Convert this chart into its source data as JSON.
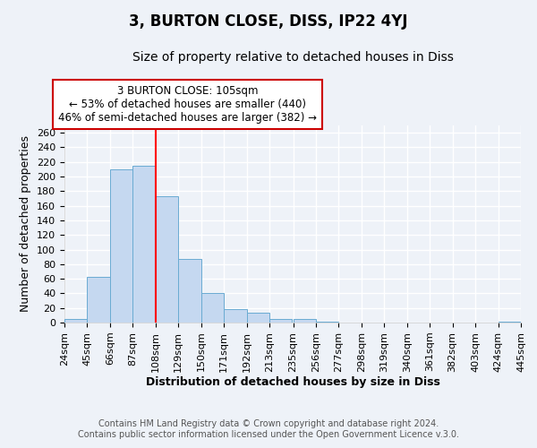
{
  "title": "3, BURTON CLOSE, DISS, IP22 4YJ",
  "subtitle": "Size of property relative to detached houses in Diss",
  "xlabel": "Distribution of detached houses by size in Diss",
  "ylabel": "Number of detached properties",
  "bin_edges": [
    24,
    45,
    66,
    87,
    108,
    129,
    150,
    171,
    192,
    213,
    235,
    256,
    277,
    298,
    319,
    340,
    361,
    382,
    403,
    424,
    445
  ],
  "bar_heights": [
    5,
    63,
    210,
    215,
    173,
    87,
    40,
    19,
    14,
    5,
    5,
    1,
    0,
    0,
    0,
    0,
    0,
    0,
    0,
    1
  ],
  "bar_color": "#c5d8f0",
  "bar_edge_color": "#6aabd2",
  "red_line_x": 108,
  "ylim": [
    0,
    270
  ],
  "yticks": [
    0,
    20,
    40,
    60,
    80,
    100,
    120,
    140,
    160,
    180,
    200,
    220,
    240,
    260
  ],
  "annotation_title": "3 BURTON CLOSE: 105sqm",
  "annotation_line1": "← 53% of detached houses are smaller (440)",
  "annotation_line2": "46% of semi-detached houses are larger (382) →",
  "annotation_box_color": "#ffffff",
  "annotation_box_edge": "#cc0000",
  "footer1": "Contains HM Land Registry data © Crown copyright and database right 2024.",
  "footer2": "Contains public sector information licensed under the Open Government Licence v.3.0.",
  "background_color": "#eef2f8",
  "grid_color": "#ffffff",
  "title_fontsize": 12,
  "subtitle_fontsize": 10,
  "axis_label_fontsize": 9,
  "tick_fontsize": 8,
  "footer_fontsize": 7
}
